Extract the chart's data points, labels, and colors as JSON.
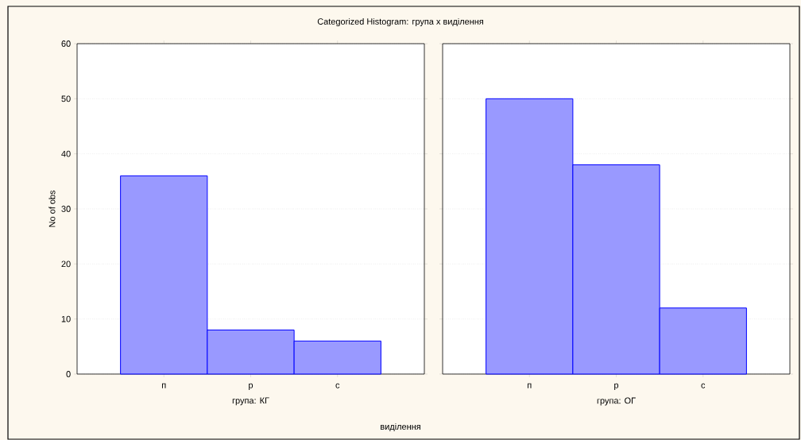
{
  "chart_data": [
    {
      "type": "bar",
      "title": "Categorized Histogram: група x виділення",
      "xlabel": "група: КГ",
      "ylabel": "No of obs",
      "annotations": [
        "виділення"
      ],
      "categories": [
        "п",
        "р",
        "с"
      ],
      "values": [
        36,
        8,
        6
      ],
      "color": "#0000ff",
      "ylim": [
        0,
        60
      ],
      "yticks": [
        0,
        10,
        20,
        30,
        40,
        50,
        60
      ],
      "grid": "y"
    },
    {
      "type": "bar",
      "xlabel": "група: ОГ",
      "categories": [
        "п",
        "р",
        "с"
      ],
      "values": [
        50,
        38,
        12
      ],
      "color": "#0000ff",
      "ylim": [
        0,
        60
      ],
      "yticks": [
        0,
        10,
        20,
        30,
        40,
        50,
        60
      ],
      "grid": "y",
      "tick_labels": "x"
    }
  ]
}
